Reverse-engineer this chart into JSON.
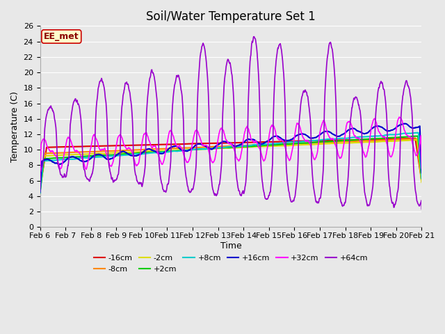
{
  "title": "Soil/Water Temperature Set 1",
  "xlabel": "Time",
  "ylabel": "Temperature (C)",
  "ylim": [
    0,
    26
  ],
  "yticks": [
    0,
    2,
    4,
    6,
    8,
    10,
    12,
    14,
    16,
    18,
    20,
    22,
    24,
    26
  ],
  "x_labels": [
    "Feb 6",
    "Feb 7",
    "Feb 8",
    "Feb 9",
    "Feb 10",
    "Feb 11",
    "Feb 12",
    "Feb 13",
    "Feb 14",
    "Feb 15",
    "Feb 16",
    "Feb 17",
    "Feb 18",
    "Feb 19",
    "Feb 20",
    "Feb 21"
  ],
  "annotation_text": "EE_met",
  "annotation_bg": "#ffffcc",
  "annotation_border": "#cc0000",
  "series": {
    "-16cm": {
      "color": "#dd0000",
      "lw": 1.5
    },
    "-8cm": {
      "color": "#ff8800",
      "lw": 1.5
    },
    "-2cm": {
      "color": "#dddd00",
      "lw": 1.5
    },
    "+2cm": {
      "color": "#00cc00",
      "lw": 1.5
    },
    "+8cm": {
      "color": "#00cccc",
      "lw": 1.5
    },
    "+16cm": {
      "color": "#0000cc",
      "lw": 1.5
    },
    "+32cm": {
      "color": "#ff00ff",
      "lw": 1.2
    },
    "+64cm": {
      "color": "#9900cc",
      "lw": 1.2
    }
  },
  "fig_bg": "#e8e8e8",
  "plot_bg": "#e8e8e8",
  "grid_color": "#ffffff",
  "title_fontsize": 12,
  "axis_fontsize": 9,
  "tick_fontsize": 8
}
